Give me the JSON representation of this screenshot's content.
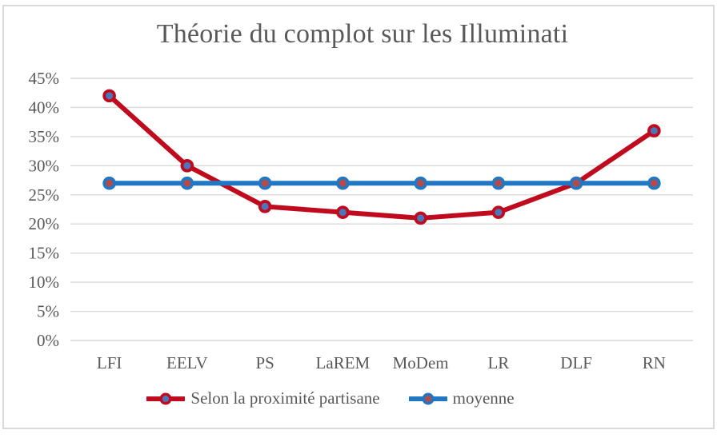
{
  "window": {
    "background_color": "#ffffff",
    "frame_border_color": "#d9d9d9"
  },
  "chart_data": {
    "type": "line",
    "title": "Théorie du complot sur les Illuminati",
    "categories": [
      "LFI",
      "EELV",
      "PS",
      "LaREM",
      "MoDem",
      "LR",
      "DLF",
      "RN"
    ],
    "series": [
      {
        "name": "Selon la proximité partisane",
        "values": [
          42,
          30,
          23,
          22,
          21,
          22,
          27,
          36
        ],
        "color": "#c00b1e",
        "marker_fill": "#4a76bc"
      },
      {
        "name": "moyenne",
        "values": [
          27,
          27,
          27,
          27,
          27,
          27,
          27,
          27
        ],
        "color": "#2077c4",
        "marker_fill": "#b54a48"
      }
    ],
    "ylim": [
      0,
      45
    ],
    "y_tick_step": 5,
    "y_tick_labels": [
      "0%",
      "5%",
      "10%",
      "15%",
      "20%",
      "25%",
      "30%",
      "35%",
      "40%",
      "45%"
    ],
    "xlabel": "",
    "ylabel": "",
    "grid": "horizontal",
    "grid_color": "#d9d9d9",
    "text_color": "#595959",
    "legend_position": "bottom"
  }
}
